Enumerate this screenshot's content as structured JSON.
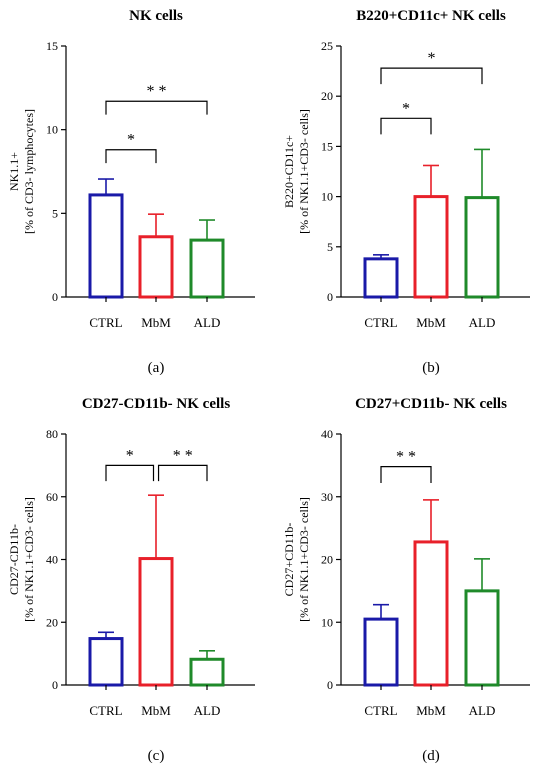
{
  "chart_data": [
    {
      "type": "bar",
      "title": "NK cells",
      "ylabel_lines": [
        "NK1.1+",
        "[% of CD3- lymphocytes]"
      ],
      "categories": [
        "CTRL",
        "MbM",
        "ALD"
      ],
      "values": [
        6.1,
        3.6,
        3.4
      ],
      "errors": [
        0.95,
        1.35,
        1.2
      ],
      "colors": [
        "#1a1aa8",
        "#e8202a",
        "#1f8a2a"
      ],
      "ylim": [
        0,
        15
      ],
      "yticks": [
        0,
        5,
        10,
        15
      ],
      "comparisons": [
        {
          "from": 0,
          "to": 2,
          "label": "* *",
          "y": 11.7,
          "drop": 0.8
        },
        {
          "from": 0,
          "to": 1,
          "label": "*",
          "y": 8.8,
          "drop": 0.8
        }
      ],
      "caption": "(a)"
    },
    {
      "type": "bar",
      "title": "B220+CD11c+ NK cells",
      "ylabel_lines": [
        "B220+CD11c+",
        "[% of NK1.1+CD3- cells]"
      ],
      "categories": [
        "CTRL",
        "MbM",
        "ALD"
      ],
      "values": [
        3.8,
        10.0,
        9.9
      ],
      "errors": [
        0.4,
        3.1,
        4.8
      ],
      "colors": [
        "#1a1aa8",
        "#e8202a",
        "#1f8a2a"
      ],
      "ylim": [
        0,
        25
      ],
      "yticks": [
        0,
        5,
        10,
        15,
        20,
        25
      ],
      "comparisons": [
        {
          "from": 0,
          "to": 2,
          "label": "*",
          "y": 22.8,
          "drop": 1.6
        },
        {
          "from": 0,
          "to": 1,
          "label": "*",
          "y": 17.8,
          "drop": 1.6
        }
      ],
      "caption": "(b)"
    },
    {
      "type": "bar",
      "title": "CD27-CD11b- NK cells",
      "ylabel_lines": [
        "CD27-CD11b-",
        "[% of NK1.1+CD3- cells]"
      ],
      "categories": [
        "CTRL",
        "MbM",
        "ALD"
      ],
      "values": [
        14.8,
        40.3,
        8.2
      ],
      "errors": [
        2.0,
        20.2,
        2.7
      ],
      "colors": [
        "#1a1aa8",
        "#e8202a",
        "#1f8a2a"
      ],
      "ylim": [
        0,
        80
      ],
      "yticks": [
        0,
        20,
        40,
        60,
        80
      ],
      "comparisons": [
        {
          "from": 0,
          "to": 0.95,
          "label": "*",
          "y": 70,
          "drop": 5
        },
        {
          "from": 1.05,
          "to": 2,
          "label": "* *",
          "y": 70,
          "drop": 5
        }
      ],
      "caption": "(c)"
    },
    {
      "type": "bar",
      "title": "CD27+CD11b- NK cells",
      "ylabel_lines": [
        "CD27+CD11b-",
        "[% of NK1.1+CD3- cells]"
      ],
      "categories": [
        "CTRL",
        "MbM",
        "ALD"
      ],
      "values": [
        10.5,
        22.8,
        15.0
      ],
      "errors": [
        2.3,
        6.7,
        5.1
      ],
      "colors": [
        "#1a1aa8",
        "#e8202a",
        "#1f8a2a"
      ],
      "ylim": [
        0,
        40
      ],
      "yticks": [
        0,
        10,
        20,
        30,
        40
      ],
      "comparisons": [
        {
          "from": 0,
          "to": 1,
          "label": "* *",
          "y": 34.8,
          "drop": 2.6
        }
      ],
      "caption": "(d)"
    }
  ]
}
